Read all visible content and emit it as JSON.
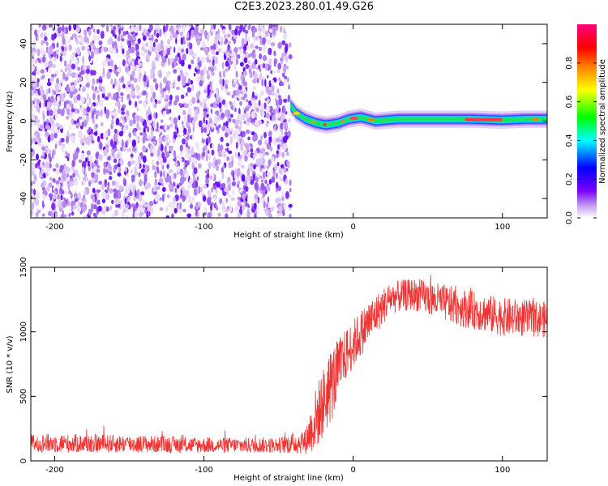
{
  "title": "C2E3.2023.280.01.49.G26",
  "chart_data": [
    {
      "type": "heatmap",
      "xlabel": "Height of straight line (km)",
      "ylabel": "Frequency (Hz)",
      "xlim": [
        -216,
        130
      ],
      "ylim": [
        -50,
        50
      ],
      "xticks": [
        -200,
        -100,
        0,
        100
      ],
      "yticks": [
        -40,
        -20,
        0,
        20,
        40
      ],
      "colorbar": {
        "label": "Normalized spectral amplitude",
        "range": [
          0,
          1
        ],
        "ticks": [
          0.0,
          0.2,
          0.4,
          0.6,
          0.8
        ],
        "colors": [
          "#ffffff",
          "#c8a0f0",
          "#7800ff",
          "#0000ff",
          "#00ffff",
          "#00ff00",
          "#ffff00",
          "#ff8000",
          "#ff0000",
          "#ff00a0"
        ]
      },
      "regions": [
        {
          "x_range": [
            -216,
            -42
          ],
          "y_range": [
            -50,
            50
          ],
          "amplitude": "low (0.0-0.2) scattered noise"
        },
        {
          "x_range": [
            -42,
            130
          ],
          "y_center": 1,
          "y_halfwidth": 3,
          "amplitude": "signal band 0.3-1.0"
        }
      ],
      "signal_track": [
        {
          "x": -42,
          "y": 8
        },
        {
          "x": -38,
          "y": 4
        },
        {
          "x": -32,
          "y": 1
        },
        {
          "x": -25,
          "y": -1
        },
        {
          "x": -18,
          "y": -2
        },
        {
          "x": -10,
          "y": -1
        },
        {
          "x": -3,
          "y": 1
        },
        {
          "x": 5,
          "y": 2
        },
        {
          "x": 15,
          "y": 0
        },
        {
          "x": 30,
          "y": 1
        },
        {
          "x": 60,
          "y": 1
        },
        {
          "x": 80,
          "y": 1
        },
        {
          "x": 100,
          "y": 0.5
        },
        {
          "x": 115,
          "y": 1
        },
        {
          "x": 130,
          "y": 1
        }
      ]
    },
    {
      "type": "line",
      "xlabel": "Height of straight line (km)",
      "ylabel": "SNR (10 * v/v)",
      "xlim": [
        -216,
        130
      ],
      "ylim": [
        0,
        1500
      ],
      "xticks": [
        -200,
        -100,
        0,
        100
      ],
      "yticks": [
        0,
        500,
        1000,
        1500
      ],
      "series_color": "#ee3333",
      "envelope": [
        {
          "x": -216,
          "base": 130,
          "spread": 150
        },
        {
          "x": -150,
          "base": 125,
          "spread": 140
        },
        {
          "x": -100,
          "base": 115,
          "spread": 120
        },
        {
          "x": -50,
          "base": 115,
          "spread": 120
        },
        {
          "x": -32,
          "base": 140,
          "spread": 200
        },
        {
          "x": -25,
          "base": 300,
          "spread": 500
        },
        {
          "x": -15,
          "base": 550,
          "spread": 600
        },
        {
          "x": -5,
          "base": 800,
          "spread": 400
        },
        {
          "x": 10,
          "base": 1050,
          "spread": 350
        },
        {
          "x": 25,
          "base": 1250,
          "spread": 250
        },
        {
          "x": 40,
          "base": 1280,
          "spread": 250
        },
        {
          "x": 70,
          "base": 1180,
          "spread": 300
        },
        {
          "x": 100,
          "base": 1100,
          "spread": 300
        },
        {
          "x": 130,
          "base": 1080,
          "spread": 280
        }
      ]
    }
  ]
}
